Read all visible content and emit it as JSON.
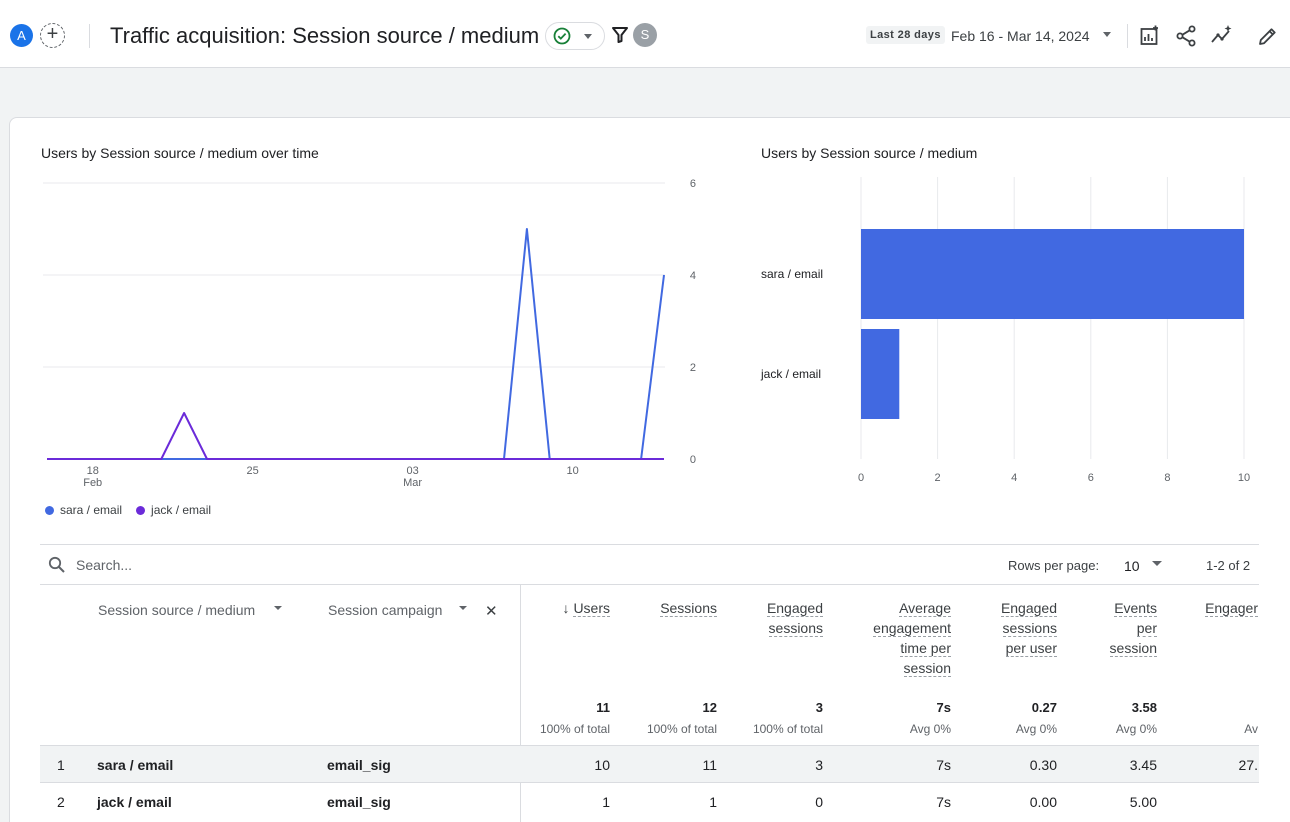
{
  "header": {
    "account_initial": "A",
    "title": "Traffic acquisition: Session source / medium",
    "user_initial": "S",
    "date_chip": "Last 28 days",
    "date_range": "Feb 16 - Mar 14, 2024"
  },
  "line_chart": {
    "title": "Users by Session source / medium over time"
  },
  "bar_chart": {
    "title": "Users by Session source / medium"
  },
  "chart_data": [
    {
      "type": "line",
      "y_ticks": [
        "0",
        "2",
        "4",
        "6"
      ],
      "ylim": [
        0,
        6
      ],
      "x_tick_labels": [
        {
          "day": "18",
          "month": "Feb"
        },
        {
          "day": "25",
          "month": ""
        },
        {
          "day": "03",
          "month": "Mar"
        },
        {
          "day": "10",
          "month": ""
        }
      ],
      "x": [
        "Feb 16",
        "Feb 17",
        "Feb 18",
        "Feb 19",
        "Feb 20",
        "Feb 21",
        "Feb 22",
        "Feb 23",
        "Feb 24",
        "Feb 25",
        "Feb 26",
        "Feb 27",
        "Feb 28",
        "Feb 29",
        "Mar 01",
        "Mar 02",
        "Mar 03",
        "Mar 04",
        "Mar 05",
        "Mar 06",
        "Mar 07",
        "Mar 08",
        "Mar 09",
        "Mar 10",
        "Mar 11",
        "Mar 12",
        "Mar 13",
        "Mar 14"
      ],
      "series": [
        {
          "name": "sara / email",
          "color": "#4169e1",
          "values": [
            0,
            0,
            0,
            0,
            0,
            0,
            0,
            0,
            0,
            0,
            0,
            0,
            0,
            0,
            0,
            0,
            0,
            0,
            0,
            0,
            0,
            5,
            0,
            0,
            0,
            0,
            0,
            4
          ]
        },
        {
          "name": "jack / email",
          "color": "#6b2bd9",
          "values": [
            0,
            0,
            0,
            0,
            0,
            0,
            1,
            0,
            0,
            0,
            0,
            0,
            0,
            0,
            0,
            0,
            0,
            0,
            0,
            0,
            0,
            0,
            0,
            0,
            0,
            0,
            0,
            0
          ]
        }
      ],
      "grid": true,
      "legend": "bottom-left"
    },
    {
      "type": "bar",
      "orientation": "horizontal",
      "categories": [
        "sara / email",
        "jack / email"
      ],
      "values": [
        10,
        1
      ],
      "x_ticks": [
        "0",
        "2",
        "4",
        "6",
        "8",
        "10"
      ],
      "xlim": [
        0,
        10
      ],
      "color": "#4169e1",
      "grid": true
    }
  ],
  "table": {
    "search_placeholder": "Search...",
    "rows_per_page_label": "Rows per page:",
    "rows_per_page_value": "10",
    "page_range": "1-2 of 2",
    "dimension_1": "Session source / medium",
    "dimension_2": "Session campaign",
    "remove_label": "✕",
    "metrics": [
      {
        "label": [
          "Users"
        ],
        "total": "11",
        "sub": "100% of total",
        "sorted": true
      },
      {
        "label": [
          "Sessions"
        ],
        "total": "12",
        "sub": "100% of total"
      },
      {
        "label": [
          "Engaged",
          "sessions"
        ],
        "total": "3",
        "sub": "100% of total"
      },
      {
        "label": [
          "Average",
          "engagement",
          "time per",
          "session"
        ],
        "total": "7s",
        "sub": "Avg 0%"
      },
      {
        "label": [
          "Engaged",
          "sessions",
          "per user"
        ],
        "total": "0.27",
        "sub": "Avg 0%"
      },
      {
        "label": [
          "Events",
          "per",
          "session"
        ],
        "total": "3.58",
        "sub": "Avg 0%"
      },
      {
        "label": [
          "Engager"
        ],
        "total": "",
        "sub": "Av"
      }
    ],
    "rows": [
      {
        "index": "1",
        "source": "sara / email",
        "campaign": "email_sig",
        "values": [
          "10",
          "11",
          "3",
          "7s",
          "0.30",
          "3.45",
          "27."
        ]
      },
      {
        "index": "2",
        "source": "jack / email",
        "campaign": "email_sig",
        "values": [
          "1",
          "1",
          "0",
          "7s",
          "0.00",
          "5.00",
          ""
        ]
      }
    ]
  }
}
